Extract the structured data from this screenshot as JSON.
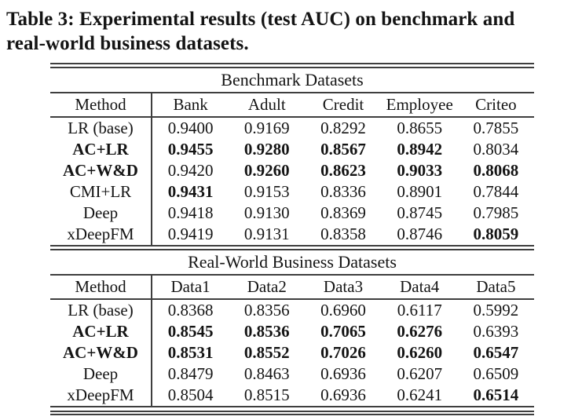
{
  "caption": {
    "line1": "Table 3: Experimental results (test AUC) on benchmark and",
    "line2": "real-world business datasets.",
    "full": "Table 3: Experimental results (test AUC) on benchmark and real-world business datasets."
  },
  "colors": {
    "text": "#141414",
    "rule": "#3e3e3e",
    "background": "#ffffff"
  },
  "tables": [
    {
      "section_title": "Benchmark Datasets",
      "columns": [
        "Method",
        "Bank",
        "Adult",
        "Credit",
        "Employee",
        "Criteo"
      ],
      "rows": [
        {
          "method": "LR (base)",
          "method_bold": false,
          "values": [
            "0.9400",
            "0.9169",
            "0.8292",
            "0.8655",
            "0.7855"
          ],
          "bold": [
            false,
            false,
            false,
            false,
            false
          ]
        },
        {
          "method": "AC+LR",
          "method_bold": true,
          "values": [
            "0.9455",
            "0.9280",
            "0.8567",
            "0.8942",
            "0.8034"
          ],
          "bold": [
            true,
            true,
            true,
            true,
            false
          ]
        },
        {
          "method": "AC+W&D",
          "method_bold": true,
          "values": [
            "0.9420",
            "0.9260",
            "0.8623",
            "0.9033",
            "0.8068"
          ],
          "bold": [
            false,
            true,
            true,
            true,
            true
          ]
        },
        {
          "method": "CMI+LR",
          "method_bold": false,
          "values": [
            "0.9431",
            "0.9153",
            "0.8336",
            "0.8901",
            "0.7844"
          ],
          "bold": [
            true,
            false,
            false,
            false,
            false
          ]
        },
        {
          "method": "Deep",
          "method_bold": false,
          "values": [
            "0.9418",
            "0.9130",
            "0.8369",
            "0.8745",
            "0.7985"
          ],
          "bold": [
            false,
            false,
            false,
            false,
            false
          ]
        },
        {
          "method": "xDeepFM",
          "method_bold": false,
          "values": [
            "0.9419",
            "0.9131",
            "0.8358",
            "0.8746",
            "0.8059"
          ],
          "bold": [
            false,
            false,
            false,
            false,
            true
          ]
        }
      ]
    },
    {
      "section_title": "Real-World Business Datasets",
      "columns": [
        "Method",
        "Data1",
        "Data2",
        "Data3",
        "Data4",
        "Data5"
      ],
      "rows": [
        {
          "method": "LR (base)",
          "method_bold": false,
          "values": [
            "0.8368",
            "0.8356",
            "0.6960",
            "0.6117",
            "0.5992"
          ],
          "bold": [
            false,
            false,
            false,
            false,
            false
          ]
        },
        {
          "method": "AC+LR",
          "method_bold": true,
          "values": [
            "0.8545",
            "0.8536",
            "0.7065",
            "0.6276",
            "0.6393"
          ],
          "bold": [
            true,
            true,
            true,
            true,
            false
          ]
        },
        {
          "method": "AC+W&D",
          "method_bold": true,
          "values": [
            "0.8531",
            "0.8552",
            "0.7026",
            "0.6260",
            "0.6547"
          ],
          "bold": [
            true,
            true,
            true,
            true,
            true
          ]
        },
        {
          "method": "Deep",
          "method_bold": false,
          "values": [
            "0.8479",
            "0.8463",
            "0.6936",
            "0.6207",
            "0.6509"
          ],
          "bold": [
            false,
            false,
            false,
            false,
            false
          ]
        },
        {
          "method": "xDeepFM",
          "method_bold": false,
          "values": [
            "0.8504",
            "0.8515",
            "0.6936",
            "0.6241",
            "0.6514"
          ],
          "bold": [
            false,
            false,
            false,
            false,
            true
          ]
        }
      ]
    }
  ]
}
